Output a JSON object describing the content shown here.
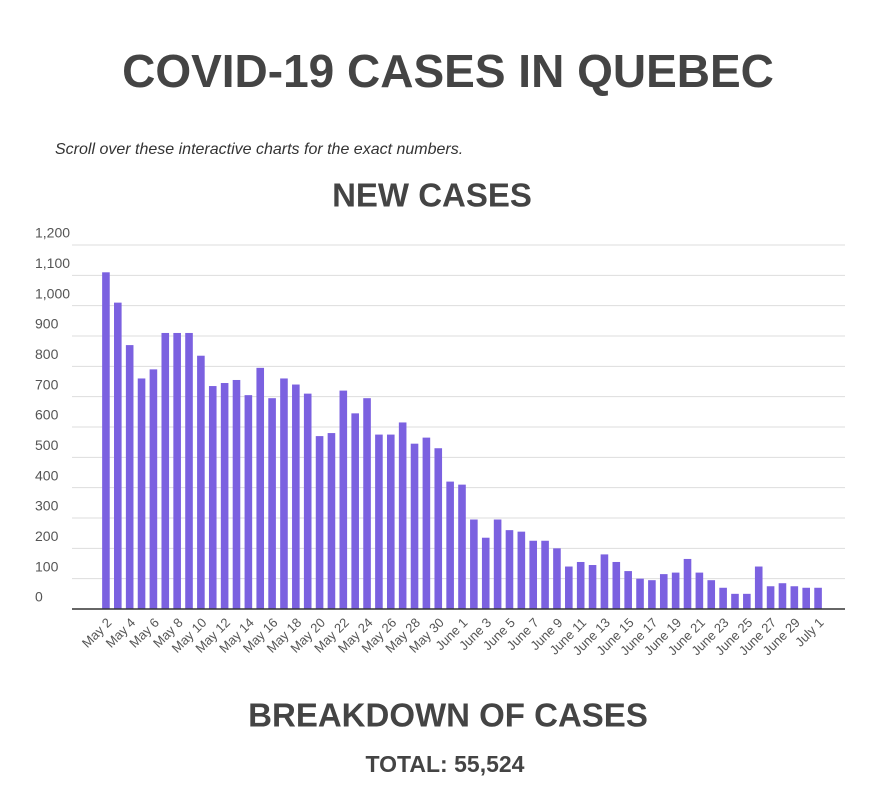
{
  "header": {
    "title": "COVID-19 CASES IN QUEBEC",
    "subtitle": "Scroll over these interactive charts for the exact numbers."
  },
  "chart_data": {
    "type": "bar",
    "title": "NEW CASES",
    "categories": [
      "May 2",
      null,
      "May 4",
      null,
      "May 6",
      null,
      "May 8",
      null,
      "May 10",
      null,
      "May 12",
      null,
      "May 14",
      null,
      "May 16",
      null,
      "May 18",
      null,
      "May 20",
      null,
      "May 22",
      null,
      "May 24",
      null,
      "May 26",
      null,
      "May 28",
      null,
      "May 30",
      null,
      "June 1",
      null,
      "June 3",
      null,
      "June 5",
      null,
      "June 7",
      null,
      "June 9",
      null,
      "June 11",
      null,
      "June 13",
      null,
      "June 15",
      null,
      "June 17",
      null,
      "June 19",
      null,
      "June 21",
      null,
      "June 23",
      null,
      "June 25",
      null,
      "June 27",
      null,
      "June 29",
      null,
      "July 1"
    ],
    "values": [
      1110,
      1010,
      870,
      760,
      790,
      910,
      910,
      910,
      835,
      735,
      745,
      755,
      705,
      795,
      695,
      760,
      740,
      710,
      570,
      580,
      720,
      645,
      695,
      575,
      575,
      615,
      545,
      565,
      530,
      420,
      410,
      295,
      235,
      295,
      260,
      255,
      225,
      225,
      200,
      140,
      155,
      145,
      180,
      155,
      125,
      100,
      95,
      115,
      120,
      165,
      120,
      95,
      70,
      50,
      50,
      140,
      75,
      85,
      75,
      70,
      70
    ],
    "color": "#7b61e0",
    "ylim": [
      0,
      1200
    ],
    "yticks": [
      0,
      100,
      200,
      300,
      400,
      500,
      600,
      700,
      800,
      900,
      {
        "value": 1000,
        "label": "1,000"
      },
      {
        "value": 1100,
        "label": "1,100"
      },
      {
        "value": 1200,
        "label": "1,200"
      }
    ],
    "grid": true
  },
  "footer": {
    "title": "BREAKDOWN OF CASES",
    "total": "TOTAL: 55,524"
  }
}
